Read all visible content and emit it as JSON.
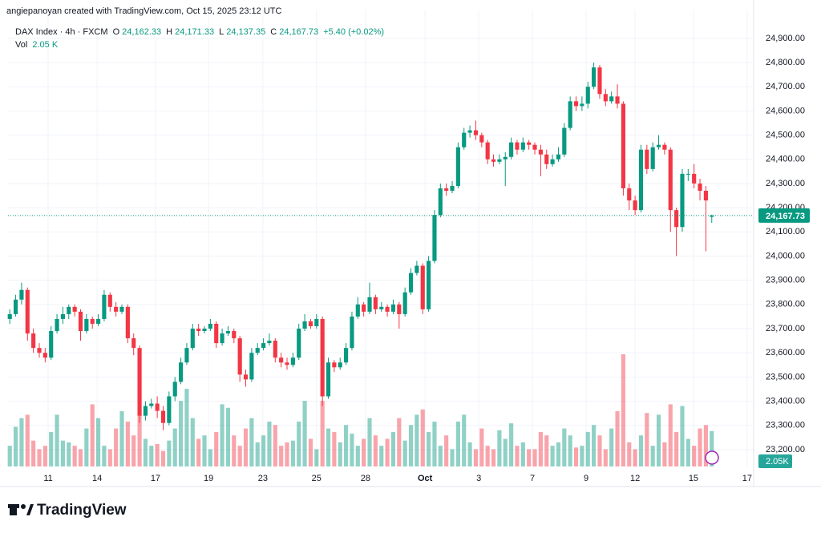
{
  "header": "angiepanoyan created with TradingView.com, Oct 15, 2025 23:12 UTC",
  "legend": {
    "symbol": "DAX Index · 4h · FXCM",
    "o_label": "O",
    "o": "24,162.33",
    "h_label": "H",
    "h": "24,171.33",
    "l_label": "L",
    "l": "24,137.35",
    "c_label": "C",
    "c": "24,167.73",
    "change": "+5.40 (+0.02%)",
    "vol_label": "Vol",
    "vol": "2.05 K"
  },
  "brand": "TradingView",
  "chart_data": {
    "type": "candlestick",
    "up_color": "#089981",
    "down_color": "#f23645",
    "open": [
      23740,
      23760,
      23820,
      23860,
      23680,
      23620,
      23600,
      23580,
      23690,
      23740,
      23760,
      23790,
      23770,
      23690,
      23740,
      23720,
      23740,
      23840,
      23790,
      23770,
      23790,
      23660,
      23620,
      23340,
      23380,
      23390,
      23360,
      23310,
      23420,
      23480,
      23560,
      23620,
      23700,
      23690,
      23700,
      23720,
      23640,
      23680,
      23690,
      23660,
      23510,
      23490,
      23600,
      23620,
      23640,
      23650,
      23580,
      23560,
      23550,
      23580,
      23700,
      23730,
      23710,
      23740,
      23420,
      23560,
      23540,
      23560,
      23620,
      23750,
      23800,
      23770,
      23830,
      23780,
      23790,
      23770,
      23800,
      23760,
      23850,
      23930,
      23960,
      23780,
      23980,
      24170,
      24280,
      24270,
      24290,
      24450,
      24510,
      24520,
      24500,
      24470,
      24400,
      24390,
      24400,
      24410,
      24470,
      24440,
      24470,
      24460,
      24440,
      24420,
      24380,
      24400,
      24420,
      24530,
      24640,
      24620,
      24630,
      24700,
      24780,
      24670,
      24640,
      24660,
      24630,
      24280,
      24230,
      24190,
      24440,
      24360,
      24450,
      24460,
      24440,
      24190,
      24120,
      24340,
      24340,
      24300,
      24270,
      24162.33
    ],
    "high": [
      23780,
      23840,
      23890,
      23870,
      23700,
      23640,
      23620,
      23710,
      23760,
      23790,
      23800,
      23800,
      23780,
      23760,
      23750,
      23760,
      23860,
      23850,
      23810,
      23800,
      23800,
      23680,
      23630,
      23400,
      23410,
      23420,
      23380,
      23440,
      23500,
      23580,
      23640,
      23720,
      23720,
      23710,
      23740,
      23730,
      23700,
      23710,
      23700,
      23670,
      23530,
      23620,
      23640,
      23660,
      23680,
      23660,
      23600,
      23580,
      23600,
      23720,
      23760,
      23740,
      23760,
      23750,
      23580,
      23570,
      23580,
      23640,
      23770,
      23830,
      23810,
      23890,
      23840,
      23810,
      23800,
      23820,
      23810,
      23870,
      23950,
      23980,
      23970,
      24000,
      24190,
      24300,
      24300,
      24310,
      24470,
      24530,
      24540,
      24560,
      24510,
      24480,
      24420,
      24420,
      24430,
      24490,
      24480,
      24490,
      24480,
      24470,
      24460,
      24440,
      24420,
      24450,
      24550,
      24660,
      24660,
      24660,
      24720,
      24800,
      24790,
      24690,
      24680,
      24710,
      24640,
      24300,
      24250,
      24460,
      24460,
      24470,
      24500,
      24470,
      24450,
      24200,
      24360,
      24360,
      24380,
      24320,
      24290,
      24171.33
    ],
    "low": [
      23720,
      23750,
      23800,
      23650,
      23600,
      23580,
      23560,
      23570,
      23680,
      23720,
      23740,
      23750,
      23650,
      23680,
      23700,
      23710,
      23730,
      23770,
      23750,
      23760,
      23640,
      23590,
      23310,
      23320,
      23370,
      23330,
      23280,
      23300,
      23400,
      23470,
      23550,
      23610,
      23670,
      23680,
      23690,
      23620,
      23630,
      23670,
      23640,
      23480,
      23460,
      23480,
      23590,
      23610,
      23630,
      23560,
      23540,
      23530,
      23540,
      23570,
      23690,
      23700,
      23700,
      23380,
      23410,
      23520,
      23530,
      23550,
      23610,
      23740,
      23750,
      23760,
      23760,
      23770,
      23750,
      23760,
      23700,
      23750,
      23840,
      23920,
      23760,
      23770,
      23970,
      24160,
      24250,
      24260,
      24280,
      24440,
      24490,
      24480,
      24450,
      24380,
      24370,
      24380,
      24290,
      24400,
      24420,
      24430,
      24440,
      24420,
      24330,
      24360,
      24370,
      24390,
      24410,
      24520,
      24600,
      24600,
      24610,
      24690,
      24650,
      24620,
      24630,
      24610,
      24250,
      24190,
      24170,
      24180,
      24340,
      24350,
      24440,
      24420,
      24100,
      24000,
      24100,
      24310,
      24280,
      24230,
      24020,
      24137.35
    ],
    "close": [
      23760,
      23820,
      23860,
      23680,
      23620,
      23600,
      23580,
      23690,
      23740,
      23760,
      23790,
      23770,
      23690,
      23740,
      23720,
      23740,
      23840,
      23790,
      23770,
      23790,
      23660,
      23620,
      23340,
      23380,
      23390,
      23360,
      23310,
      23420,
      23480,
      23560,
      23620,
      23700,
      23690,
      23700,
      23720,
      23640,
      23680,
      23690,
      23660,
      23510,
      23490,
      23600,
      23620,
      23640,
      23650,
      23580,
      23560,
      23550,
      23580,
      23700,
      23730,
      23710,
      23740,
      23420,
      23560,
      23540,
      23560,
      23620,
      23750,
      23800,
      23770,
      23830,
      23780,
      23790,
      23770,
      23800,
      23760,
      23850,
      23930,
      23960,
      23780,
      23980,
      24170,
      24280,
      24270,
      24290,
      24450,
      24510,
      24520,
      24500,
      24470,
      24400,
      24390,
      24400,
      24410,
      24470,
      24440,
      24470,
      24460,
      24440,
      24420,
      24380,
      24400,
      24420,
      24530,
      24640,
      24620,
      24630,
      24700,
      24780,
      24670,
      24640,
      24660,
      24630,
      24280,
      24230,
      24190,
      24440,
      24360,
      24450,
      24460,
      24440,
      24190,
      24120,
      24340,
      24340,
      24300,
      24270,
      24230,
      24167.73
    ],
    "volume": [
      1.2,
      2.3,
      2.8,
      3.0,
      1.5,
      1.0,
      1.2,
      2.0,
      3.0,
      1.5,
      1.4,
      1.2,
      1.0,
      2.2,
      3.6,
      2.8,
      1.2,
      1.0,
      2.2,
      3.2,
      2.6,
      1.8,
      3.0,
      1.6,
      1.2,
      1.3,
      0.9,
      1.5,
      2.2,
      3.8,
      4.5,
      2.8,
      1.6,
      1.8,
      1.0,
      2.0,
      3.6,
      3.4,
      1.8,
      1.2,
      2.2,
      2.8,
      1.4,
      1.8,
      2.6,
      2.4,
      1.2,
      1.4,
      1.5,
      2.6,
      3.8,
      1.6,
      1.0,
      3.8,
      2.2,
      2.0,
      1.4,
      2.4,
      1.9,
      1.2,
      1.6,
      2.8,
      1.8,
      1.2,
      1.6,
      2.0,
      2.8,
      1.5,
      2.4,
      3.0,
      3.3,
      2.0,
      2.6,
      1.2,
      1.8,
      1.0,
      2.6,
      3.0,
      1.4,
      1.0,
      2.2,
      1.2,
      1.0,
      2.1,
      1.6,
      2.5,
      1.2,
      1.4,
      1.0,
      1.0,
      2.0,
      1.8,
      1.2,
      1.4,
      2.2,
      1.8,
      1.1,
      1.2,
      2.0,
      2.4,
      1.8,
      1.0,
      2.2,
      3.2,
      6.5,
      1.4,
      1.0,
      1.8,
      3.1,
      1.2,
      3.0,
      1.4,
      3.6,
      2.0,
      3.5,
      1.6,
      1.2,
      2.2,
      2.4,
      2.05
    ],
    "volume_label": "2.05K",
    "last_price": {
      "value": 24167.73,
      "label": "24,167.73"
    },
    "xlim": [
      -0.3,
      126.1
    ],
    "ylim": [
      23130,
      25019
    ],
    "xticks": [
      {
        "value": 6.5,
        "label": "11"
      },
      {
        "value": 14.8,
        "label": "14"
      },
      {
        "value": 24.7,
        "label": "17"
      },
      {
        "value": 33.7,
        "label": "19"
      },
      {
        "value": 42.9,
        "label": "23"
      },
      {
        "value": 52,
        "label": "25"
      },
      {
        "value": 60.3,
        "label": "28"
      },
      {
        "value": 70.4,
        "label": "Oct"
      },
      {
        "value": 79.5,
        "label": "3"
      },
      {
        "value": 88.6,
        "label": "7"
      },
      {
        "value": 97.7,
        "label": "9"
      },
      {
        "value": 106,
        "label": "12"
      },
      {
        "value": 115.9,
        "label": "15"
      },
      {
        "value": 125,
        "label": "17"
      }
    ],
    "yticks": [
      {
        "value": 23200,
        "label": "23,200.00"
      },
      {
        "value": 23300,
        "label": "23,300.00"
      },
      {
        "value": 23400,
        "label": "23,400.00"
      },
      {
        "value": 23500,
        "label": "23,500.00"
      },
      {
        "value": 23600,
        "label": "23,600.00"
      },
      {
        "value": 23700,
        "label": "23,700.00"
      },
      {
        "value": 23800,
        "label": "23,800.00"
      },
      {
        "value": 23900,
        "label": "23,900.00"
      },
      {
        "value": 24000,
        "label": "24,000.00"
      },
      {
        "value": 24100,
        "label": "24,100.00"
      },
      {
        "value": 24200,
        "label": "24,200.00"
      },
      {
        "value": 24300,
        "label": "24,300.00"
      },
      {
        "value": 24400,
        "label": "24,400.00"
      },
      {
        "value": 24500,
        "label": "24,500.00"
      },
      {
        "value": 24600,
        "label": "24,600.00"
      },
      {
        "value": 24700,
        "label": "24,700.00"
      },
      {
        "value": 24800,
        "label": "24,800.00"
      },
      {
        "value": 24900,
        "label": "24,900.00"
      }
    ],
    "grid": true
  }
}
